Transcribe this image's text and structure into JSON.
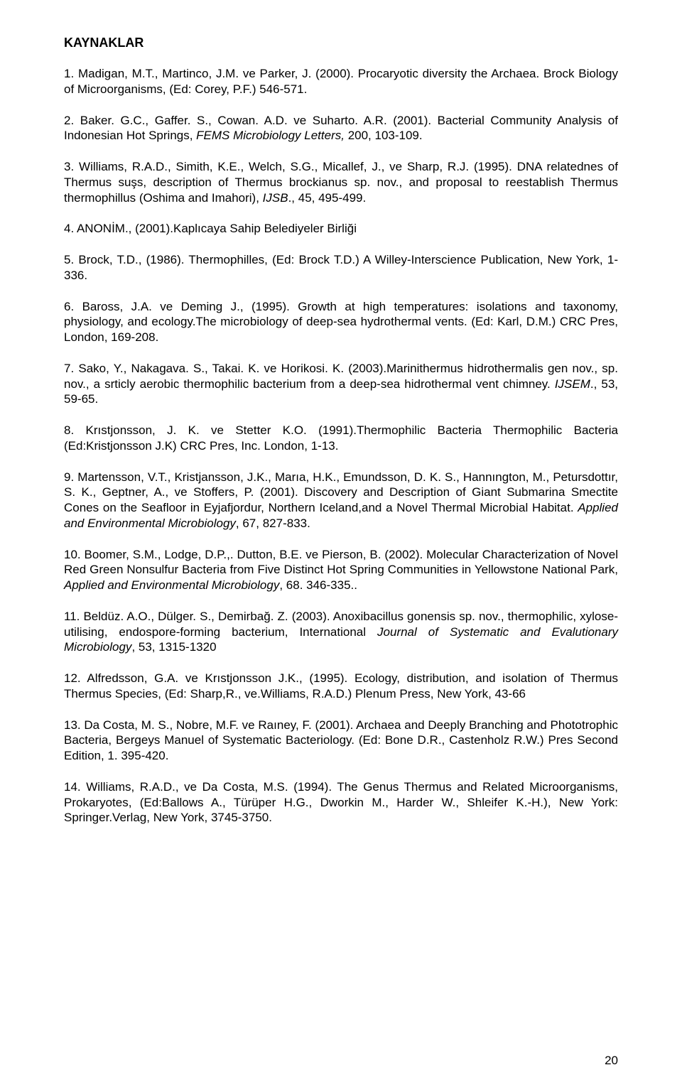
{
  "heading": "KAYNAKLAR",
  "page_number": "20",
  "refs": [
    {
      "segs": [
        {
          "t": "1. Madigan, M.T., Martinco, J.M. ve Parker, J. (2000). Procaryotic diversity the Archaea. Brock Biology of Microorganisms, (Ed: Corey, P.F.) 546-571."
        }
      ]
    },
    {
      "segs": [
        {
          "t": "2. Baker. G.C., Gaffer. S., Cowan. A.D. ve Suharto. A.R. (2001). Bacterial Community Analysis of Indonesian Hot Springs, "
        },
        {
          "t": "FEMS Microbiology Letters,",
          "i": true
        },
        {
          "t": " 200, 103-109."
        }
      ]
    },
    {
      "segs": [
        {
          "t": "3. Williams, R.A.D., Simith, K.E., Welch, S.G., Micallef, J., ve Sharp, R.J. (1995). DNA relatednes of Thermus suşs, description of Thermus brockianus sp. nov., and proposal to reestablish Thermus thermophillus (Oshima and Imahori), "
        },
        {
          "t": "IJSB",
          "i": true
        },
        {
          "t": "., 45, 495-499."
        }
      ]
    },
    {
      "segs": [
        {
          "t": "4. ANONİM., (2001).Kaplıcaya Sahip Belediyeler Birliği"
        }
      ]
    },
    {
      "segs": [
        {
          "t": "5. Brock, T.D., (1986). Thermophilles, (Ed: Brock T.D.) A Willey-Interscience Publication, New York, 1-336."
        }
      ]
    },
    {
      "segs": [
        {
          "t": "6. Baross, J.A. ve Deming J., (1995). Growth at high temperatures: isolations and taxonomy, physiology, and ecology.The microbiology of deep-sea hydrothermal vents. (Ed: Karl, D.M.) CRC Pres, London, 169-208."
        }
      ]
    },
    {
      "segs": [
        {
          "t": "7. Sako, Y., Nakagava. S., Takai. K. ve Horikosi. K. (2003).Marinithermus hidrothermalis gen nov., sp. nov., a srticly aerobic thermophilic bacterium from a deep-sea  hidrothermal vent chimney. "
        },
        {
          "t": "IJSEM",
          "i": true
        },
        {
          "t": "., 53, 59-65."
        }
      ]
    },
    {
      "segs": [
        {
          "t": "8. Krıstjonsson, J. K. ve Stetter K.O. (1991).Thermophilic Bacteria Thermophilic Bacteria (Ed:Kristjonsson J.K) CRC Pres, Inc. London, 1-13."
        }
      ]
    },
    {
      "segs": [
        {
          "t": "9. Martensson, V.T., Kristjansson, J.K., Marıa, H.K., Emundsson, D. K. S., Hannıngton, M., Petursdottır, S. K., Geptner, A., ve Stoffers, P. (2001). Discovery and Description of Giant Submarina Smectite Cones on the Seafloor in Eyjafjordur, Northern Iceland,and a Novel Thermal Microbial Habitat. "
        },
        {
          "t": "Applied and Environmental Microbiology",
          "i": true
        },
        {
          "t": ", 67, 827-833."
        }
      ]
    },
    {
      "segs": [
        {
          "t": "10. Boomer, S.M., Lodge, D.P.,. Dutton, B.E. ve Pierson, B. (2002). Molecular Characterization of Novel Red Green Nonsulfur Bacteria from Five Distinct Hot Spring Communities in Yellowstone National Park, "
        },
        {
          "t": "Applied and Environmental Microbiology",
          "i": true
        },
        {
          "t": ", 68. 346-335.."
        }
      ]
    },
    {
      "segs": [
        {
          "t": "11. Beldüz. A.O., Dülger. S., Demirbağ. Z. (2003). Anoxibacillus gonensis sp. nov., thermophilic, xylose-utilising, endospore-forming bacterium, International "
        },
        {
          "t": "Journal of Systematic and Evalutionary Microbiology",
          "i": true
        },
        {
          "t": ", 53, 1315-1320"
        }
      ]
    },
    {
      "segs": [
        {
          "t": "12. Alfredsson, G.A. ve Krıstjonsson J.K., (1995). Ecology, distribution, and isolation of Thermus Thermus Species, (Ed: Sharp,R., ve.Williams, R.A.D.) Plenum Press, New York, 43-66"
        }
      ]
    },
    {
      "segs": [
        {
          "t": "13. Da Costa, M. S., Nobre, M.F. ve Raıney, F. (2001). Archaea and Deeply  Branching and Phototrophic Bacteria, Bergeys Manuel of Systematic Bacteriology. (Ed: Bone D.R., Castenholz R.W.) Pres Second Edition, 1. 395-420."
        }
      ]
    },
    {
      "segs": [
        {
          "t": "14. Williams, R.A.D., ve Da Costa, M.S. (1994). The Genus Thermus and Related Microorganisms, Prokaryotes, (Ed:Ballows A., Türüper H.G., Dworkin M., Harder W., Shleifer K.-H.), New York: Springer.Verlag, New York, 3745-3750."
        }
      ]
    }
  ]
}
